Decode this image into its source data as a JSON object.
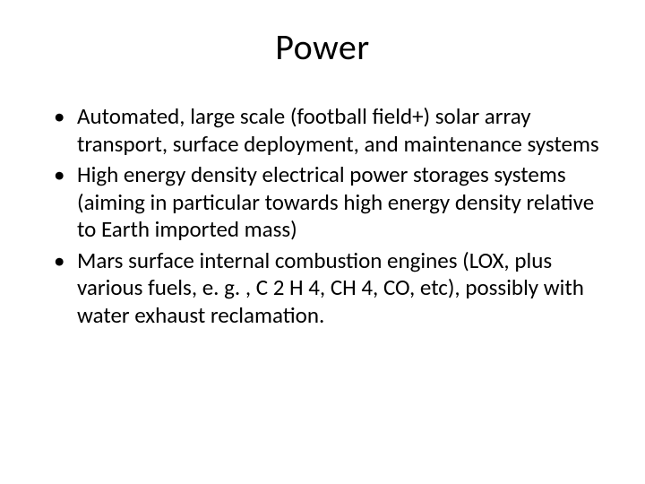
{
  "slide": {
    "title": "Power",
    "title_fontsize": 40,
    "body_fontsize": 25,
    "text_color": "#000000",
    "background_color": "#ffffff",
    "bullets": [
      "Automated, large scale (football field+) solar array transport, surface deployment, and maintenance systems",
      "High energy density electrical power storages systems (aiming in particular towards high energy density relative to Earth imported mass)",
      "Mars surface internal combustion engines (LOX, plus various fuels, e. g. , C 2 H 4, CH 4, CO, etc), possibly with water exhaust reclamation."
    ]
  }
}
